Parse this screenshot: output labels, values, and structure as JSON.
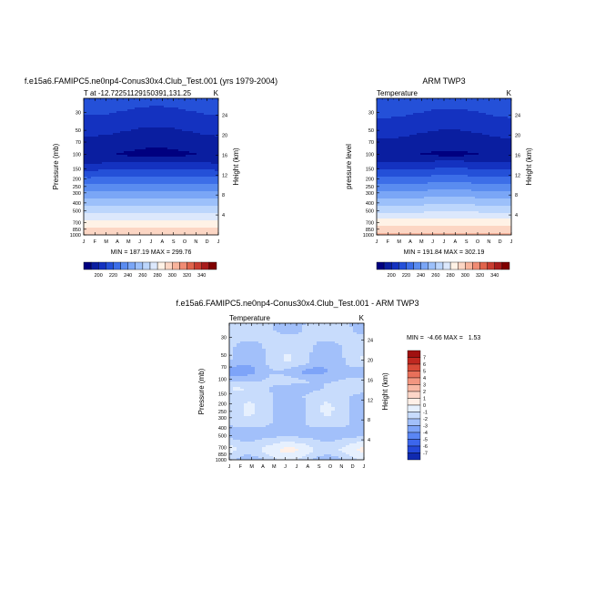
{
  "palette": {
    "temperature": [
      "#000080",
      "#0a1ea0",
      "#1432c0",
      "#2450d8",
      "#3c6ee8",
      "#5a8cf0",
      "#7aa6f6",
      "#9cc0fa",
      "#bcd6fc",
      "#dce8fc",
      "#fff2e6",
      "#fcd6c4",
      "#f8b49c",
      "#f08c74",
      "#e0644c",
      "#c83c30",
      "#a81c1c",
      "#800000"
    ],
    "difference": [
      "#000080",
      "#102ab0",
      "#2448d8",
      "#3c66ec",
      "#5a86f4",
      "#7ea4f8",
      "#a2c0fa",
      "#c8dcfc",
      "#e6f0fe",
      "#fff0e8",
      "#fcd6c8",
      "#f8b8a4",
      "#f29680",
      "#e8705a",
      "#d84a38",
      "#c02820",
      "#a01010",
      "#800000"
    ]
  },
  "chart_data": [
    {
      "id": "model",
      "type": "contour",
      "title": "f.e15a6.FAMIPC5.ne0np4-Conus30x4.Club_Test.001 (yrs 1979-2004)",
      "left_label": "T at -12.72251129150391,131.25",
      "right_label": "K",
      "ylabel": "Pressure (mb)",
      "ylabel_right": "Height (km)",
      "yticks": [
        30,
        50,
        70,
        100,
        150,
        200,
        250,
        300,
        400,
        500,
        700,
        850,
        1000
      ],
      "ylim": [
        1000,
        20
      ],
      "right_ticks": [
        24,
        20,
        16,
        12,
        8,
        4
      ],
      "xticks": [
        "J",
        "F",
        "M",
        "A",
        "M",
        "J",
        "J",
        "A",
        "S",
        "O",
        "N",
        "D",
        "J"
      ],
      "min_max_text": "MIN = 187.19 MAX = 299.76",
      "levels": [
        190,
        200,
        210,
        220,
        230,
        240,
        250,
        260,
        270,
        280,
        290,
        300,
        310,
        320,
        330,
        340,
        350
      ],
      "colorbar_labels": [
        "200",
        "220",
        "240",
        "260",
        "280",
        "300",
        "320",
        "340"
      ]
    },
    {
      "id": "obs",
      "type": "contour",
      "title": "ARM TWP3",
      "left_label": "Temperature",
      "right_label": "K",
      "ylabel": "pressure level",
      "ylabel_right": "Height (km)",
      "yticks": [
        30,
        50,
        70,
        100,
        150,
        200,
        250,
        300,
        400,
        500,
        700,
        850,
        1000
      ],
      "ylim": [
        1000,
        20
      ],
      "right_ticks": [
        24,
        20,
        16,
        12,
        8,
        4
      ],
      "xticks": [
        "J",
        "F",
        "M",
        "A",
        "M",
        "J",
        "J",
        "A",
        "S",
        "O",
        "N",
        "D",
        "J"
      ],
      "min_max_text": "MIN = 191.84 MAX = 302.19",
      "levels": [
        190,
        200,
        210,
        220,
        230,
        240,
        250,
        260,
        270,
        280,
        290,
        300,
        310,
        320,
        330,
        340,
        350
      ],
      "colorbar_labels": [
        "200",
        "220",
        "240",
        "260",
        "280",
        "300",
        "320",
        "340"
      ]
    },
    {
      "id": "diff",
      "type": "contour",
      "title": "f.e15a6.FAMIPC5.ne0np4-Conus30x4.Club_Test.001 - ARM TWP3",
      "left_label": "Temperature",
      "right_label": "K",
      "ylabel": "Pressure (mb)",
      "ylabel_right": "Height (km)",
      "yticks": [
        30,
        50,
        70,
        100,
        150,
        200,
        250,
        300,
        400,
        500,
        700,
        850,
        1000
      ],
      "ylim": [
        1000,
        20
      ],
      "right_ticks": [
        24,
        20,
        16,
        12,
        8,
        4
      ],
      "xticks": [
        "J",
        "F",
        "M",
        "A",
        "M",
        "J",
        "J",
        "A",
        "S",
        "O",
        "N",
        "D",
        "J"
      ],
      "min_max_text": "MIN =  -4.66 MAX =   1.53",
      "levels": [
        -8,
        -7,
        -6,
        -5,
        -4,
        -3,
        -2,
        -1,
        0,
        1,
        2,
        3,
        4,
        5,
        6,
        7,
        8
      ],
      "colorbar_labels": [
        "7",
        "6",
        "5",
        "4",
        "3",
        "2",
        "1",
        "0",
        "-1",
        "-2",
        "-3",
        "-4",
        "-5",
        "-6",
        "-7"
      ]
    }
  ]
}
